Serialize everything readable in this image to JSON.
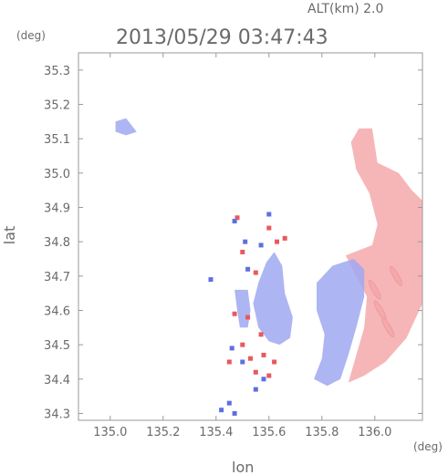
{
  "header": {
    "altitude_label": "ALT(km) 2.0",
    "timestamp": "2013/05/29 03:47:43"
  },
  "chart_data": {
    "type": "heatmap",
    "title": "2013/05/29 03:47:43",
    "subtitle": "ALT(km) 2.0",
    "xlabel": "lon",
    "ylabel": "lat",
    "x_unit": "(deg)",
    "y_unit": "(deg)",
    "xlim": [
      134.88,
      136.18
    ],
    "ylim": [
      34.28,
      35.35
    ],
    "x_ticks": [
      "135.0",
      "135.2",
      "135.4",
      "135.6",
      "135.8",
      "136.0"
    ],
    "y_ticks": [
      "34.3",
      "34.4",
      "34.5",
      "34.6",
      "34.7",
      "34.8",
      "34.9",
      "35.0",
      "35.1",
      "35.2",
      "35.3"
    ],
    "grid": false,
    "colors": {
      "approaching": "#9fa8f0",
      "receding": "#f4a9ab",
      "strong_receding": "#e8595d",
      "strong_approaching": "#5f6fe0"
    },
    "regions": [
      {
        "name": "east-receding",
        "color": "receding",
        "polygon": [
          [
            135.94,
            35.13
          ],
          [
            135.99,
            35.13
          ],
          [
            136.01,
            35.03
          ],
          [
            136.09,
            35.0
          ],
          [
            136.14,
            34.95
          ],
          [
            136.18,
            34.92
          ],
          [
            136.18,
            34.62
          ],
          [
            136.12,
            34.52
          ],
          [
            136.04,
            34.45
          ],
          [
            135.96,
            34.41
          ],
          [
            135.9,
            34.39
          ],
          [
            135.93,
            34.47
          ],
          [
            135.96,
            34.55
          ],
          [
            135.97,
            34.64
          ],
          [
            135.93,
            34.7
          ],
          [
            135.89,
            34.76
          ],
          [
            135.99,
            34.79
          ],
          [
            136.01,
            34.85
          ],
          [
            135.98,
            34.94
          ],
          [
            135.93,
            35.01
          ],
          [
            135.91,
            35.09
          ]
        ]
      },
      {
        "name": "south-approaching",
        "color": "approaching",
        "polygon": [
          [
            135.78,
            34.68
          ],
          [
            135.84,
            34.73
          ],
          [
            135.92,
            34.75
          ],
          [
            135.96,
            34.72
          ],
          [
            135.96,
            34.64
          ],
          [
            135.93,
            34.55
          ],
          [
            135.9,
            34.47
          ],
          [
            135.87,
            34.4
          ],
          [
            135.82,
            34.38
          ],
          [
            135.77,
            34.4
          ],
          [
            135.8,
            34.46
          ],
          [
            135.81,
            34.53
          ],
          [
            135.78,
            34.6
          ]
        ]
      },
      {
        "name": "central-approaching",
        "color": "approaching",
        "polygon": [
          [
            135.62,
            34.77
          ],
          [
            135.65,
            34.73
          ],
          [
            135.66,
            34.65
          ],
          [
            135.69,
            34.58
          ],
          [
            135.68,
            34.52
          ],
          [
            135.64,
            34.5
          ],
          [
            135.6,
            34.51
          ],
          [
            135.56,
            34.55
          ],
          [
            135.54,
            34.62
          ],
          [
            135.56,
            34.68
          ],
          [
            135.59,
            34.74
          ]
        ]
      },
      {
        "name": "west-mixed",
        "color": "approaching",
        "polygon": [
          [
            135.47,
            34.66
          ],
          [
            135.52,
            34.66
          ],
          [
            135.53,
            34.6
          ],
          [
            135.52,
            34.55
          ],
          [
            135.49,
            34.55
          ],
          [
            135.48,
            34.6
          ]
        ]
      },
      {
        "name": "north-west-speck",
        "color": "approaching",
        "polygon": [
          [
            135.02,
            35.15
          ],
          [
            135.06,
            35.16
          ],
          [
            135.1,
            35.12
          ],
          [
            135.06,
            35.11
          ],
          [
            135.02,
            35.12
          ]
        ]
      }
    ],
    "speckles_receding": [
      [
        135.55,
        34.42
      ],
      [
        135.58,
        34.47
      ],
      [
        135.6,
        34.41
      ],
      [
        135.5,
        34.5
      ],
      [
        135.52,
        34.58
      ],
      [
        135.55,
        34.71
      ],
      [
        135.63,
        34.8
      ],
      [
        135.66,
        34.81
      ],
      [
        135.48,
        34.87
      ],
      [
        135.45,
        34.45
      ],
      [
        135.5,
        34.77
      ],
      [
        135.57,
        34.53
      ],
      [
        135.53,
        34.46
      ],
      [
        135.62,
        34.45
      ],
      [
        135.47,
        34.59
      ],
      [
        135.6,
        34.84
      ]
    ],
    "speckles_approaching": [
      [
        135.47,
        34.86
      ],
      [
        135.51,
        34.8
      ],
      [
        135.46,
        34.49
      ],
      [
        135.5,
        34.45
      ],
      [
        135.45,
        34.33
      ],
      [
        135.47,
        34.3
      ],
      [
        135.42,
        34.31
      ],
      [
        135.55,
        34.37
      ],
      [
        135.58,
        34.4
      ],
      [
        135.38,
        34.69
      ],
      [
        135.52,
        34.72
      ],
      [
        135.57,
        34.79
      ],
      [
        135.6,
        34.88
      ]
    ],
    "streaks_receding": [
      [
        136.0,
        34.66
      ],
      [
        136.02,
        34.6
      ],
      [
        136.05,
        34.55
      ],
      [
        136.08,
        34.7
      ]
    ]
  },
  "footer": {
    "x_unit": "(deg)",
    "xlabel": "lon"
  }
}
